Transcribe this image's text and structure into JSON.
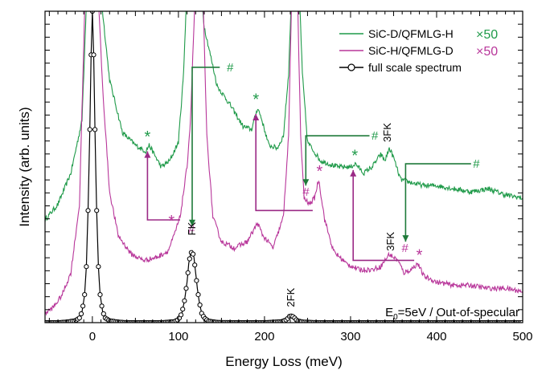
{
  "chart_data": {
    "type": "line",
    "xlabel": "Energy Loss (meV)",
    "ylabel": "Intensity (arb. units)",
    "xlim": [
      -55,
      500
    ],
    "ylim": [
      0,
      100
    ],
    "x_ticks": [
      "0",
      "100",
      "200",
      "300",
      "400",
      "500"
    ],
    "y_tick_labels": "none",
    "legend": {
      "placement": "top-right",
      "entries": [
        {
          "label": "SiC-D/QFMLG-H",
          "multiplier": "×50",
          "color": "#1f9a49",
          "marker": "line"
        },
        {
          "label": "SiC-H/QFMLG-D",
          "multiplier": "×50",
          "color": "#b8369a",
          "marker": "line"
        },
        {
          "label": "full scale spectrum",
          "multiplier": "",
          "color": "#000000",
          "marker": "open-circle-line"
        }
      ]
    },
    "series": [
      {
        "name": "SiC-D/QFMLG-H",
        "scale": "×50",
        "color": "#1f9a49",
        "points": [
          [
            -55,
            33
          ],
          [
            -40,
            38
          ],
          [
            -25,
            48
          ],
          [
            -12,
            65
          ],
          [
            -6,
            110
          ],
          [
            8,
            110
          ],
          [
            20,
            78
          ],
          [
            35,
            61
          ],
          [
            50,
            57
          ],
          [
            62,
            55
          ],
          [
            66,
            57
          ],
          [
            72,
            54
          ],
          [
            80,
            50
          ],
          [
            90,
            52
          ],
          [
            100,
            58
          ],
          [
            106,
            80
          ],
          [
            110,
            110
          ],
          [
            125,
            110
          ],
          [
            130,
            95
          ],
          [
            145,
            76
          ],
          [
            160,
            70
          ],
          [
            175,
            63
          ],
          [
            185,
            62
          ],
          [
            192,
            69
          ],
          [
            196,
            66
          ],
          [
            205,
            57
          ],
          [
            215,
            56
          ],
          [
            222,
            60
          ],
          [
            228,
            80
          ],
          [
            232,
            110
          ],
          [
            240,
            110
          ],
          [
            244,
            80
          ],
          [
            250,
            58
          ],
          [
            265,
            52
          ],
          [
            285,
            50
          ],
          [
            300,
            50
          ],
          [
            306,
            51
          ],
          [
            315,
            48
          ],
          [
            325,
            50
          ],
          [
            335,
            54
          ],
          [
            340,
            52
          ],
          [
            345,
            56
          ],
          [
            350,
            53
          ],
          [
            358,
            46
          ],
          [
            370,
            45
          ],
          [
            385,
            44
          ],
          [
            400,
            44
          ],
          [
            420,
            43
          ],
          [
            440,
            42
          ],
          [
            460,
            43
          ],
          [
            480,
            41
          ],
          [
            500,
            40
          ]
        ]
      },
      {
        "name": "SiC-H/QFMLG-D",
        "scale": "×50",
        "color": "#b8369a",
        "points": [
          [
            -55,
            3
          ],
          [
            -45,
            5
          ],
          [
            -35,
            9
          ],
          [
            -25,
            16
          ],
          [
            -15,
            38
          ],
          [
            -8,
            110
          ],
          [
            6,
            110
          ],
          [
            12,
            75
          ],
          [
            20,
            42
          ],
          [
            30,
            28
          ],
          [
            45,
            22
          ],
          [
            60,
            20
          ],
          [
            75,
            21
          ],
          [
            88,
            23
          ],
          [
            95,
            28
          ],
          [
            102,
            34
          ],
          [
            110,
            50
          ],
          [
            114,
            65
          ],
          [
            120,
            110
          ],
          [
            128,
            110
          ],
          [
            133,
            60
          ],
          [
            140,
            34
          ],
          [
            150,
            26
          ],
          [
            165,
            24
          ],
          [
            180,
            26
          ],
          [
            192,
            32
          ],
          [
            198,
            28
          ],
          [
            210,
            24
          ],
          [
            222,
            34
          ],
          [
            228,
            60
          ],
          [
            232,
            110
          ],
          [
            238,
            110
          ],
          [
            242,
            60
          ],
          [
            246,
            40
          ],
          [
            252,
            38
          ],
          [
            258,
            40
          ],
          [
            263,
            46
          ],
          [
            270,
            33
          ],
          [
            280,
            23
          ],
          [
            295,
            19
          ],
          [
            310,
            17
          ],
          [
            325,
            17
          ],
          [
            335,
            18
          ],
          [
            345,
            22
          ],
          [
            355,
            20
          ],
          [
            362,
            16
          ],
          [
            370,
            17
          ],
          [
            378,
            19
          ],
          [
            385,
            15
          ],
          [
            400,
            13
          ],
          [
            420,
            12
          ],
          [
            440,
            12
          ],
          [
            460,
            11
          ],
          [
            480,
            11
          ],
          [
            500,
            10
          ]
        ]
      },
      {
        "name": "full scale spectrum",
        "scale": "",
        "color": "#000000",
        "points": [
          [
            -55,
            0
          ],
          [
            -40,
            0
          ],
          [
            -30,
            0.2
          ],
          [
            -20,
            0.6
          ],
          [
            -15,
            1.5
          ],
          [
            -12,
            3.5
          ],
          [
            -9,
            9
          ],
          [
            -7,
            18
          ],
          [
            -5,
            36
          ],
          [
            -3,
            62
          ],
          [
            -1.5,
            86
          ],
          [
            0,
            100
          ],
          [
            1.5,
            86
          ],
          [
            3,
            62
          ],
          [
            5,
            36
          ],
          [
            7,
            18
          ],
          [
            9,
            9
          ],
          [
            12,
            3.5
          ],
          [
            15,
            1.5
          ],
          [
            20,
            0.6
          ],
          [
            30,
            0.2
          ],
          [
            40,
            0
          ],
          [
            60,
            0
          ],
          [
            80,
            0
          ],
          [
            95,
            0.3
          ],
          [
            100,
            1
          ],
          [
            104,
            3
          ],
          [
            107,
            7
          ],
          [
            110,
            13
          ],
          [
            112,
            19
          ],
          [
            114,
            22
          ],
          [
            116,
            23
          ],
          [
            118,
            21
          ],
          [
            120,
            16
          ],
          [
            122,
            11
          ],
          [
            124,
            7
          ],
          [
            127,
            3
          ],
          [
            130,
            1.5
          ],
          [
            135,
            0.5
          ],
          [
            145,
            0.1
          ],
          [
            160,
            0
          ],
          [
            200,
            0
          ],
          [
            220,
            0.3
          ],
          [
            226,
            1
          ],
          [
            229,
            2
          ],
          [
            232,
            2.2
          ],
          [
            235,
            1.5
          ],
          [
            238,
            0.6
          ],
          [
            245,
            0.2
          ],
          [
            260,
            0
          ],
          [
            300,
            0
          ],
          [
            350,
            0
          ],
          [
            400,
            0
          ],
          [
            450,
            0
          ],
          [
            500,
            0
          ]
        ]
      }
    ],
    "annotations": {
      "peak_labels": [
        {
          "text": "FK",
          "x": 116,
          "y": 28,
          "rotate": true
        },
        {
          "text": "2FK",
          "x": 231,
          "y": 5,
          "rotate": true
        },
        {
          "text": "3FK",
          "x": 343,
          "y": 58,
          "rotate": true
        },
        {
          "text": "3FK",
          "x": 347,
          "y": 23,
          "rotate": true
        }
      ],
      "note_text": "E",
      "note_sub": "0",
      "note_rest": "=5eV / Out-of-specular",
      "asterisk": "*",
      "hash": "#",
      "green_asterisks": [
        [
          64,
          60
        ],
        [
          190,
          72
        ],
        [
          305,
          54
        ]
      ],
      "magenta_asterisks": [
        [
          92,
          33
        ],
        [
          264,
          49
        ],
        [
          380,
          22
        ]
      ],
      "green_hashes": [
        [
          160,
          82
        ],
        [
          328,
          60
        ],
        [
          446,
          51
        ]
      ],
      "magenta_hashes": [
        [
          115,
          30
        ],
        [
          248,
          42
        ],
        [
          363,
          24
        ]
      ],
      "green_arrows": [
        {
          "path": [
            [
              148,
              82
            ],
            [
              116,
              82
            ],
            [
              116,
              31
            ]
          ]
        },
        {
          "path": [
            [
              322,
              60
            ],
            [
              248,
              60
            ],
            [
              248,
              44
            ]
          ]
        },
        {
          "path": [
            [
              440,
              51
            ],
            [
              364,
              51
            ],
            [
              364,
              26
            ]
          ]
        }
      ],
      "magenta_arrows": [
        {
          "path": [
            [
              102,
              33
            ],
            [
              64,
              33
            ],
            [
              64,
              55
            ]
          ]
        },
        {
          "path": [
            [
              256,
              36
            ],
            [
              190,
              36
            ],
            [
              190,
              67
            ]
          ]
        },
        {
          "path": [
            [
              374,
              20
            ],
            [
              303,
              20
            ],
            [
              303,
              49
            ]
          ]
        }
      ]
    }
  }
}
